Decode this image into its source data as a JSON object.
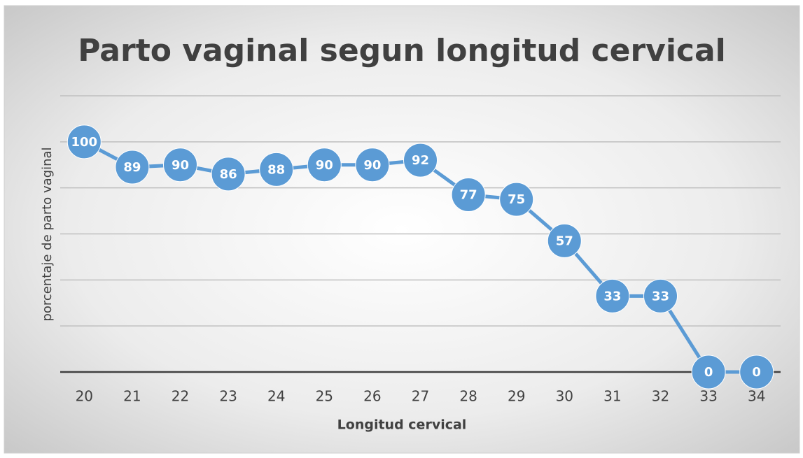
{
  "chart_data": {
    "type": "line",
    "title": "Parto vaginal segun longitud cervical",
    "xlabel": "Longitud cervical",
    "ylabel": "porcentaje de parto  vaginal",
    "categories": [
      "20",
      "21",
      "22",
      "23",
      "24",
      "25",
      "26",
      "27",
      "28",
      "29",
      "30",
      "31",
      "32",
      "33",
      "34"
    ],
    "series": [
      {
        "name": "porcentaje de parto vaginal",
        "color": "#5b9bd5",
        "values": [
          100,
          89,
          90,
          86,
          88,
          90,
          90,
          92,
          77,
          75,
          57,
          33,
          33,
          0,
          0
        ]
      }
    ],
    "ylim": [
      0,
      120
    ],
    "yticks": [
      0,
      20,
      40,
      60,
      80,
      100,
      120
    ],
    "grid": true
  }
}
